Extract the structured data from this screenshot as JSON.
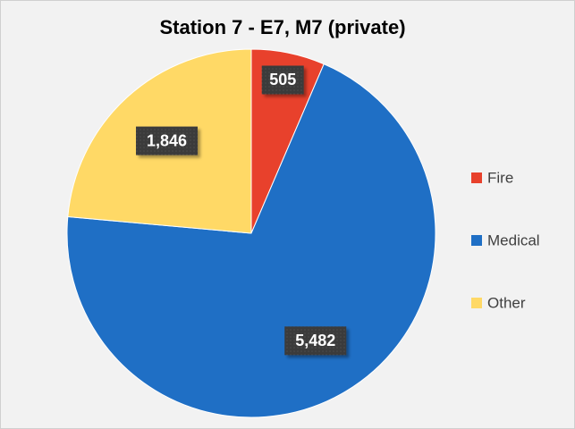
{
  "chart_data": {
    "type": "pie",
    "title": "Station 7 - E7, M7 (private)",
    "categories": [
      "Fire",
      "Medical",
      "Other"
    ],
    "values": [
      505,
      5482,
      1846
    ],
    "value_labels": [
      "505",
      "5,482",
      "1,846"
    ],
    "colors": [
      "#e8412c",
      "#1f6fc5",
      "#ffd966"
    ],
    "legend": "right"
  }
}
